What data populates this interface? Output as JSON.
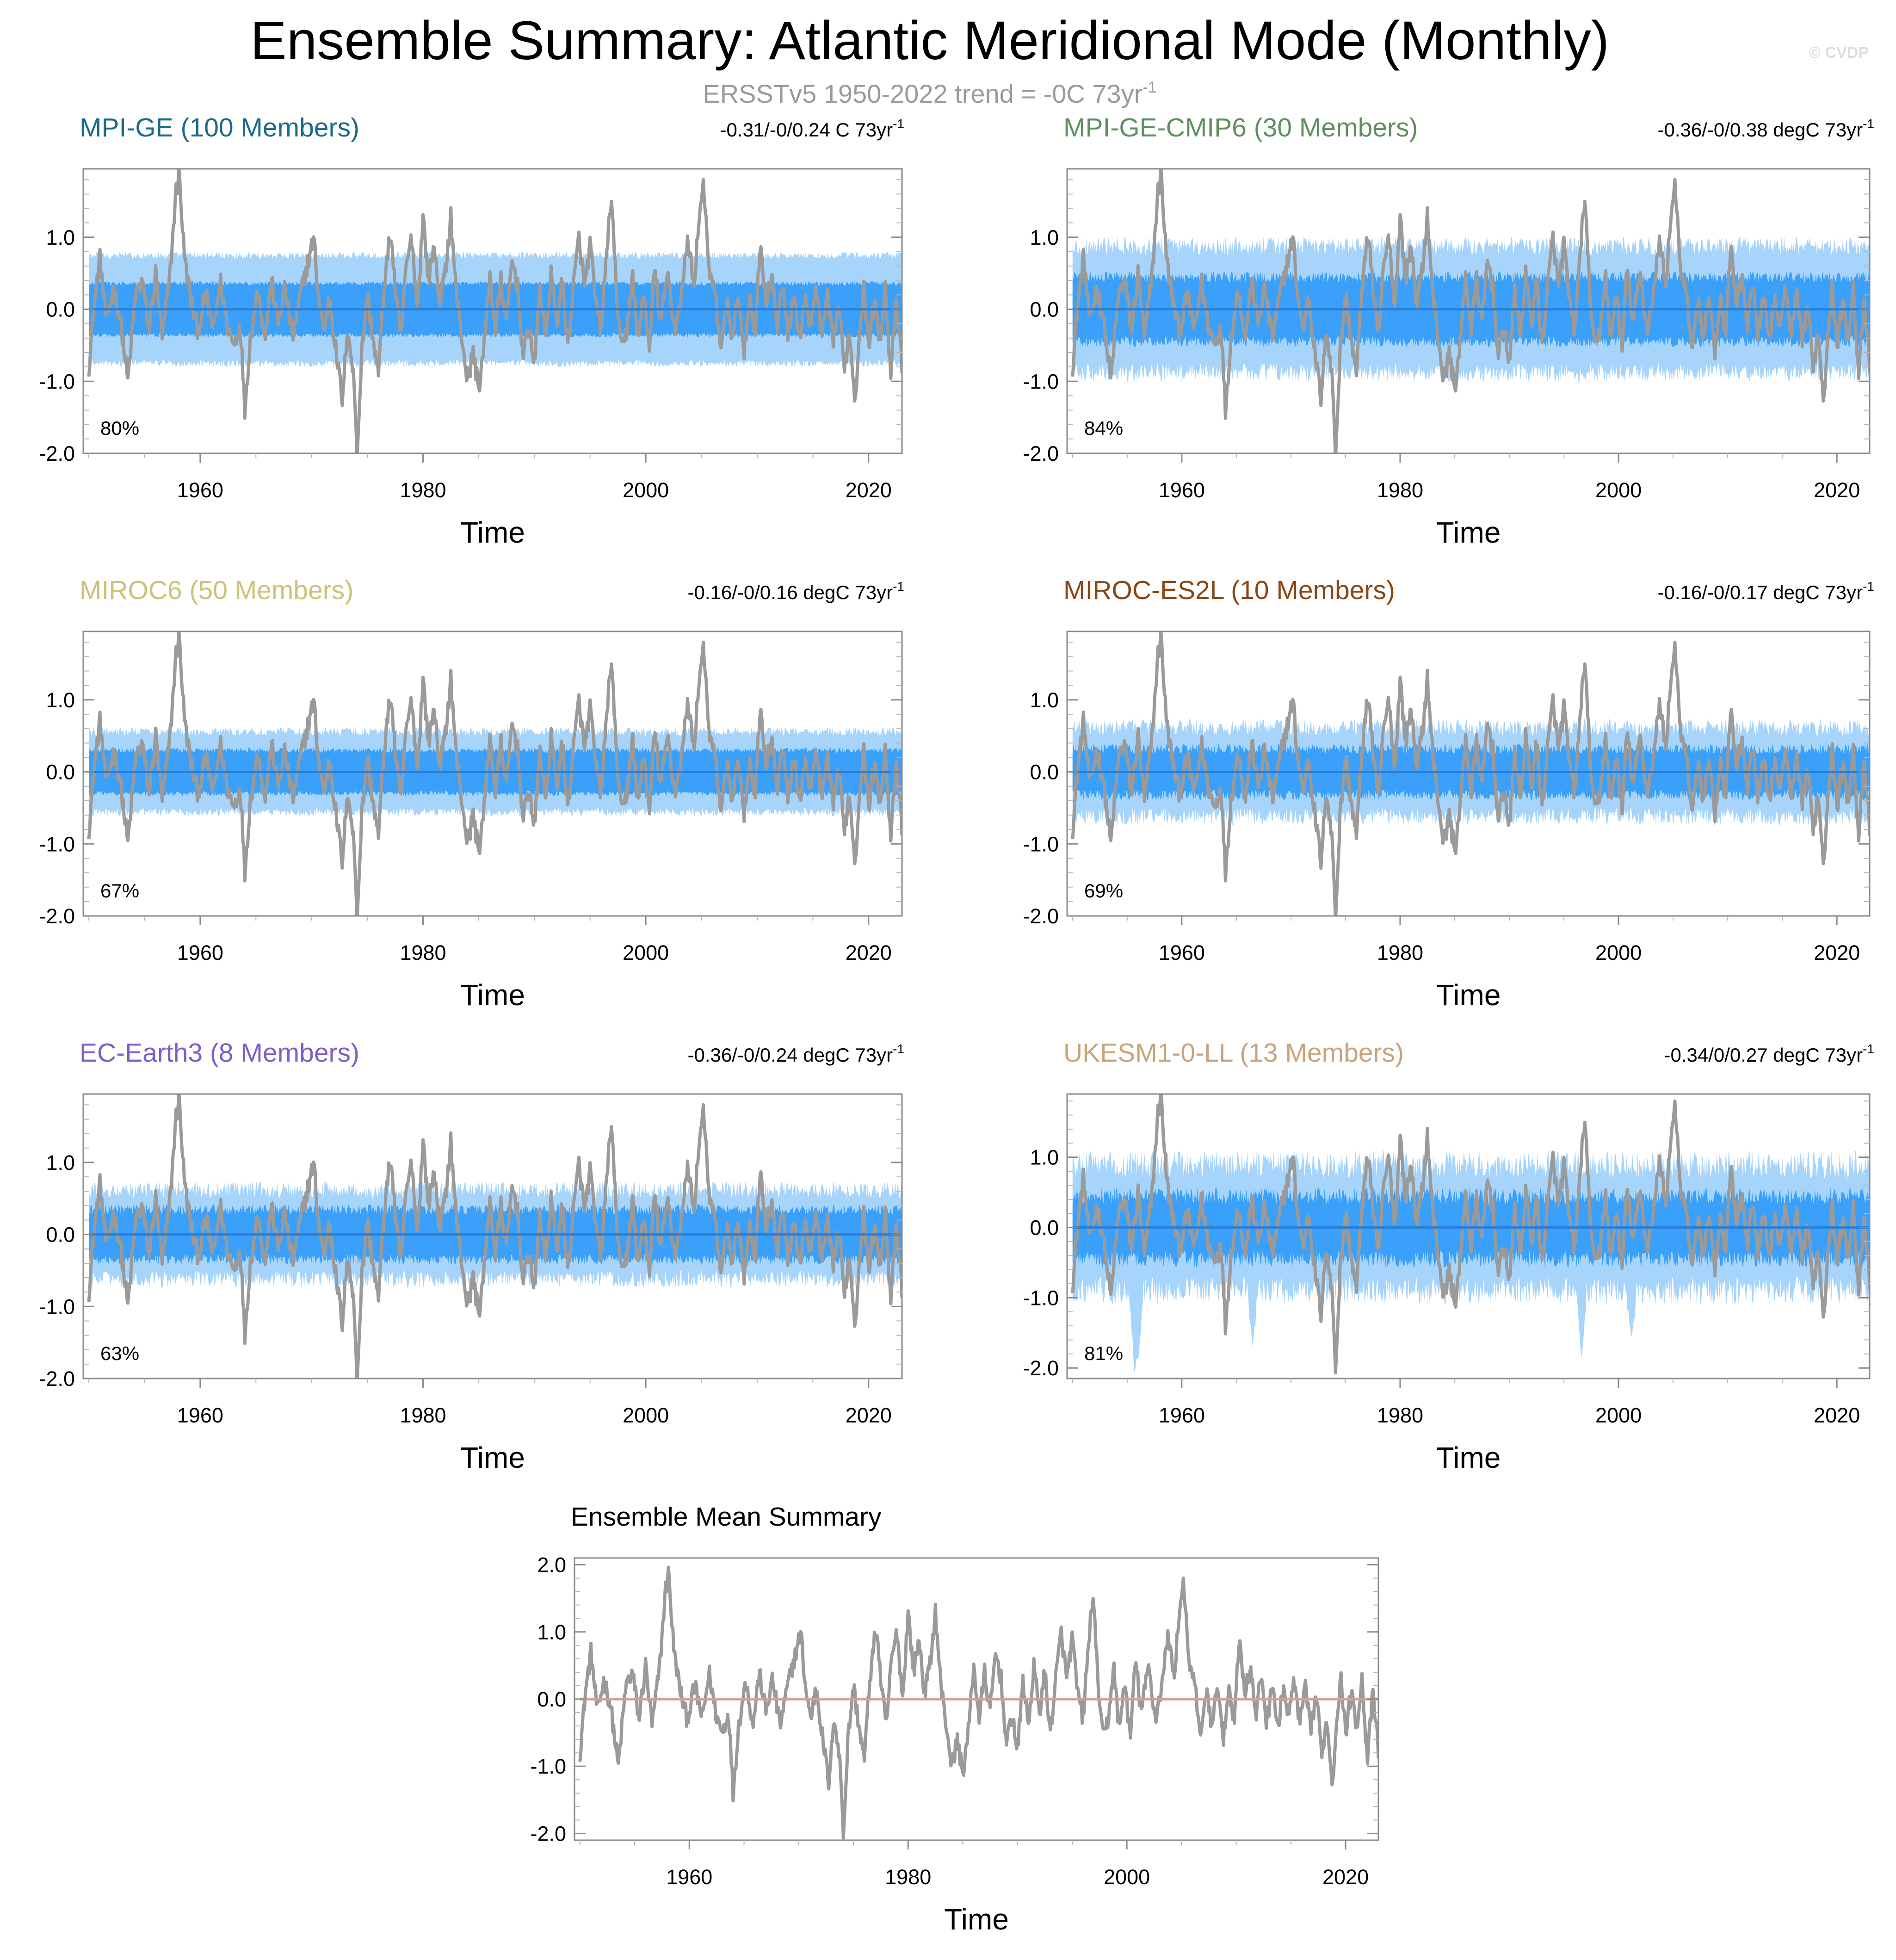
{
  "figure": {
    "title": "Ensemble Summary: Atlantic Meridional Mode (Monthly)",
    "subtitle_prefix": "ERSSTv5 1950-2022 trend = -0C 73yr",
    "subtitle_exponent": "-1",
    "watermark": "© CVDP"
  },
  "colors": {
    "observation_line": "#9a9a9a",
    "band_outer": "#a6d4fb",
    "band_inner": "#3aa0f9",
    "ensemble_mean_line": "#2a7fd8",
    "summary_zero_line": "#d0a48c"
  },
  "chart_data": [
    {
      "type": "area",
      "title": "MPI-GE (100 Members)",
      "title_color": "#1a6b8a",
      "trend_text": "-0.31/-0/0.24 C 73yr",
      "trend_exponent": "-1",
      "percent_label": "80%",
      "xlabel": "Time",
      "xlim": [
        1949.5,
        2023.0
      ],
      "ylim": [
        -2.0,
        1.95
      ],
      "xticks": [
        1960,
        1980,
        2000,
        2020
      ],
      "yticks": [
        1.0,
        0.0,
        -1.0,
        -2.0
      ],
      "ytick_labels": [
        "1.0",
        "0.0",
        "-1.0",
        "-2.0"
      ],
      "series_names": [
        "ERSSTv5 observation",
        "ensemble 10-90% range",
        "ensemble 25-75% range",
        "ensemble mean"
      ],
      "band_inner_halfwidth": 0.36,
      "band_outer_halfwidth": 0.75,
      "band_noise": 0.05,
      "extreme_dips": []
    },
    {
      "type": "area",
      "title": "MPI-GE-CMIP6 (30 Members)",
      "title_color": "#5f8f5f",
      "trend_text": "-0.36/-0/0.38 degC 73yr",
      "trend_exponent": "-1",
      "percent_label": "84%",
      "xlabel": "Time",
      "xlim": [
        1949.5,
        2023.0
      ],
      "ylim": [
        -2.0,
        1.95
      ],
      "xticks": [
        1960,
        1980,
        2000,
        2020
      ],
      "yticks": [
        1.0,
        0.0,
        -1.0,
        -2.0
      ],
      "ytick_labels": [
        "1.0",
        "0.0",
        "-1.0",
        "-2.0"
      ],
      "series_names": [
        "ERSSTv5 observation",
        "ensemble 10-90% range",
        "ensemble 25-75% range",
        "ensemble mean"
      ],
      "band_inner_halfwidth": 0.45,
      "band_outer_halfwidth": 0.88,
      "band_noise": 0.13,
      "extreme_dips": []
    },
    {
      "type": "area",
      "title": "MIROC6 (50 Members)",
      "title_color": "#c9c47a",
      "trend_text": "-0.16/-0/0.16 degC 73yr",
      "trend_exponent": "-1",
      "percent_label": "67%",
      "xlabel": "Time",
      "xlim": [
        1949.5,
        2023.0
      ],
      "ylim": [
        -2.0,
        1.95
      ],
      "xticks": [
        1960,
        1980,
        2000,
        2020
      ],
      "yticks": [
        1.0,
        0.0,
        -1.0,
        -2.0
      ],
      "ytick_labels": [
        "1.0",
        "0.0",
        "-1.0",
        "-2.0"
      ],
      "series_names": [
        "ERSSTv5 observation",
        "ensemble 10-90% range",
        "ensemble 25-75% range",
        "ensemble mean"
      ],
      "band_inner_halfwidth": 0.3,
      "band_outer_halfwidth": 0.56,
      "band_noise": 0.06,
      "extreme_dips": []
    },
    {
      "type": "area",
      "title": "MIROC-ES2L (10 Members)",
      "title_color": "#8b4513",
      "trend_text": "-0.16/-0/0.17 degC 73yr",
      "trend_exponent": "-1",
      "percent_label": "69%",
      "xlabel": "Time",
      "xlim": [
        1949.5,
        2023.0
      ],
      "ylim": [
        -2.0,
        1.95
      ],
      "xticks": [
        1960,
        1980,
        2000,
        2020
      ],
      "yticks": [
        1.0,
        0.0,
        -1.0,
        -2.0
      ],
      "ytick_labels": [
        "1.0",
        "0.0",
        "-1.0",
        "-2.0"
      ],
      "series_names": [
        "ERSSTv5 observation",
        "ensemble 10-90% range",
        "ensemble 25-75% range",
        "ensemble mean"
      ],
      "band_inner_halfwidth": 0.32,
      "band_outer_halfwidth": 0.62,
      "band_noise": 0.12,
      "extreme_dips": []
    },
    {
      "type": "area",
      "title": "EC-Earth3 (8 Members)",
      "title_color": "#7d5fc6",
      "trend_text": "-0.36/-0/0.24 degC 73yr",
      "trend_exponent": "-1",
      "percent_label": "63%",
      "xlabel": "Time",
      "xlim": [
        1949.5,
        2023.0
      ],
      "ylim": [
        -2.0,
        1.95
      ],
      "xticks": [
        1960,
        1980,
        2000,
        2020
      ],
      "yticks": [
        1.0,
        0.0,
        -1.0,
        -2.0
      ],
      "ytick_labels": [
        "1.0",
        "0.0",
        "-1.0",
        "-2.0"
      ],
      "series_names": [
        "ERSSTv5 observation",
        "ensemble 10-90% range",
        "ensemble 25-75% range",
        "ensemble mean"
      ],
      "band_inner_halfwidth": 0.35,
      "band_outer_halfwidth": 0.62,
      "band_noise": 0.12,
      "extreme_dips": []
    },
    {
      "type": "area",
      "title": "UKESM1-0-LL (13 Members)",
      "title_color": "#c9a37a",
      "trend_text": "-0.34/0/0.27 degC 73yr",
      "trend_exponent": "-1",
      "percent_label": "81%",
      "xlabel": "Time",
      "xlim": [
        1949.5,
        2023.0
      ],
      "ylim": [
        -2.15,
        1.9
      ],
      "xticks": [
        1960,
        1980,
        2000,
        2020
      ],
      "yticks": [
        1.0,
        0.0,
        -1.0,
        -2.0
      ],
      "ytick_labels": [
        "1.0",
        "0.0",
        "-1.0",
        "-2.0"
      ],
      "series_names": [
        "ERSSTv5 observation",
        "ensemble 10-90% range",
        "ensemble 25-75% range",
        "ensemble mean"
      ],
      "band_inner_halfwidth": 0.45,
      "band_outer_halfwidth": 0.9,
      "band_noise": 0.2,
      "extreme_dips": [
        {
          "year": 1955.7,
          "low": -2.15
        },
        {
          "year": 1956.0,
          "low": -1.9
        },
        {
          "year": 1966.5,
          "low": -1.7
        },
        {
          "year": 1996.6,
          "low": -1.9
        },
        {
          "year": 2001.2,
          "low": -1.6
        }
      ]
    },
    {
      "type": "line",
      "title": "Ensemble Mean Summary",
      "title_color": "#000000",
      "trend_text": "",
      "trend_exponent": "",
      "percent_label": "",
      "xlabel": "Time",
      "xlim": [
        1949.5,
        2023.0
      ],
      "ylim": [
        -2.1,
        2.1
      ],
      "xticks": [
        1960,
        1980,
        2000,
        2020
      ],
      "yticks": [
        2.0,
        1.0,
        0.0,
        -1.0,
        -2.0
      ],
      "ytick_labels": [
        "2.0",
        "1.0",
        "0.0",
        "-1.0",
        "-2.0"
      ],
      "series_names": [
        "ERSSTv5 observation",
        "multi-model ensemble mean"
      ]
    }
  ],
  "observation_series": {
    "name": "ERSSTv5 AMM index (monthly, smoothed appearance)",
    "start_year": 1950.0,
    "end_year": 2023.0,
    "anchors": [
      [
        1950.0,
        -0.8
      ],
      [
        1950.5,
        0.1
      ],
      [
        1951.0,
        0.7
      ],
      [
        1951.6,
        -0.2
      ],
      [
        1952.2,
        0.3
      ],
      [
        1952.8,
        -0.1
      ],
      [
        1953.5,
        -1.0
      ],
      [
        1954.2,
        0.2
      ],
      [
        1954.8,
        0.4
      ],
      [
        1955.4,
        -0.3
      ],
      [
        1956.0,
        0.5
      ],
      [
        1956.6,
        -0.4
      ],
      [
        1957.3,
        0.5
      ],
      [
        1957.8,
        1.6
      ],
      [
        1958.1,
        1.9
      ],
      [
        1958.6,
        0.7
      ],
      [
        1959.2,
        0.1
      ],
      [
        1959.8,
        -0.3
      ],
      [
        1960.5,
        0.2
      ],
      [
        1961.2,
        -0.3
      ],
      [
        1961.8,
        0.4
      ],
      [
        1962.4,
        -0.2
      ],
      [
        1963.0,
        -0.5
      ],
      [
        1963.6,
        -0.2
      ],
      [
        1964.0,
        -1.4
      ],
      [
        1964.5,
        -0.4
      ],
      [
        1965.2,
        0.3
      ],
      [
        1965.8,
        -0.4
      ],
      [
        1966.4,
        0.4
      ],
      [
        1967.0,
        -0.2
      ],
      [
        1967.6,
        0.3
      ],
      [
        1968.3,
        -0.4
      ],
      [
        1969.0,
        0.2
      ],
      [
        1969.6,
        0.6
      ],
      [
        1970.2,
        1.0
      ],
      [
        1970.6,
        0.2
      ],
      [
        1971.1,
        -0.3
      ],
      [
        1971.6,
        0.2
      ],
      [
        1972.2,
        -0.6
      ],
      [
        1972.8,
        -1.3
      ],
      [
        1973.2,
        -0.2
      ],
      [
        1973.8,
        -1.0
      ],
      [
        1974.1,
        -2.0
      ],
      [
        1974.5,
        -0.6
      ],
      [
        1975.0,
        0.2
      ],
      [
        1975.6,
        -0.5
      ],
      [
        1976.0,
        -0.9
      ],
      [
        1976.5,
        0.3
      ],
      [
        1977.1,
        1.1
      ],
      [
        1977.6,
        0.1
      ],
      [
        1978.0,
        -0.4
      ],
      [
        1978.5,
        0.6
      ],
      [
        1979.0,
        1.0
      ],
      [
        1979.5,
        0.0
      ],
      [
        1980.0,
        1.3
      ],
      [
        1980.5,
        0.4
      ],
      [
        1981.0,
        0.9
      ],
      [
        1981.5,
        0.1
      ],
      [
        1982.0,
        0.5
      ],
      [
        1982.5,
        1.3
      ],
      [
        1983.0,
        0.2
      ],
      [
        1983.5,
        -0.4
      ],
      [
        1984.0,
        -1.0
      ],
      [
        1984.5,
        -0.6
      ],
      [
        1985.0,
        -1.1
      ],
      [
        1985.5,
        -0.5
      ],
      [
        1986.0,
        0.5
      ],
      [
        1986.5,
        -0.3
      ],
      [
        1987.0,
        0.4
      ],
      [
        1987.5,
        -0.2
      ],
      [
        1988.0,
        0.7
      ],
      [
        1988.5,
        0.3
      ],
      [
        1989.0,
        -0.7
      ],
      [
        1989.5,
        -0.2
      ],
      [
        1990.0,
        -0.8
      ],
      [
        1990.5,
        0.3
      ],
      [
        1991.0,
        -0.4
      ],
      [
        1991.5,
        0.5
      ],
      [
        1992.0,
        -0.2
      ],
      [
        1992.5,
        0.4
      ],
      [
        1993.0,
        -0.5
      ],
      [
        1993.5,
        0.3
      ],
      [
        1994.0,
        1.0
      ],
      [
        1994.5,
        0.3
      ],
      [
        1995.0,
        0.9
      ],
      [
        1995.5,
        0.1
      ],
      [
        1996.0,
        -0.3
      ],
      [
        1996.4,
        0.6
      ],
      [
        1996.9,
        1.6
      ],
      [
        1997.3,
        0.4
      ],
      [
        1997.8,
        -0.6
      ],
      [
        1998.3,
        -0.3
      ],
      [
        1998.8,
        0.5
      ],
      [
        1999.3,
        -0.5
      ],
      [
        1999.8,
        0.3
      ],
      [
        2000.3,
        -0.6
      ],
      [
        2000.8,
        0.6
      ],
      [
        2001.3,
        -0.2
      ],
      [
        2002.0,
        0.5
      ],
      [
        2002.6,
        -0.3
      ],
      [
        2003.2,
        0.2
      ],
      [
        2003.8,
        1.0
      ],
      [
        2004.3,
        0.3
      ],
      [
        2004.8,
        1.3
      ],
      [
        2005.2,
        1.8
      ],
      [
        2005.6,
        0.6
      ],
      [
        2006.2,
        0.2
      ],
      [
        2006.8,
        -0.6
      ],
      [
        2007.3,
        0.2
      ],
      [
        2007.8,
        -0.5
      ],
      [
        2008.3,
        0.3
      ],
      [
        2008.8,
        -0.7
      ],
      [
        2009.3,
        0.2
      ],
      [
        2009.8,
        -0.3
      ],
      [
        2010.3,
        0.9
      ],
      [
        2010.8,
        0.1
      ],
      [
        2011.3,
        0.5
      ],
      [
        2011.8,
        -0.3
      ],
      [
        2012.3,
        0.4
      ],
      [
        2012.8,
        -0.4
      ],
      [
        2013.3,
        0.3
      ],
      [
        2013.8,
        -0.5
      ],
      [
        2014.3,
        0.2
      ],
      [
        2014.8,
        -0.3
      ],
      [
        2015.3,
        0.3
      ],
      [
        2015.8,
        -0.4
      ],
      [
        2016.3,
        0.2
      ],
      [
        2016.8,
        -0.5
      ],
      [
        2017.3,
        0.1
      ],
      [
        2017.8,
        -0.8
      ],
      [
        2018.3,
        -0.3
      ],
      [
        2018.8,
        -1.3
      ],
      [
        2019.2,
        -0.2
      ],
      [
        2019.6,
        0.3
      ],
      [
        2020.0,
        -0.5
      ],
      [
        2020.5,
        0.1
      ],
      [
        2021.0,
        -0.4
      ],
      [
        2021.5,
        0.3
      ],
      [
        2022.0,
        -0.9
      ],
      [
        2022.5,
        0.1
      ],
      [
        2023.0,
        -0.8
      ]
    ]
  }
}
